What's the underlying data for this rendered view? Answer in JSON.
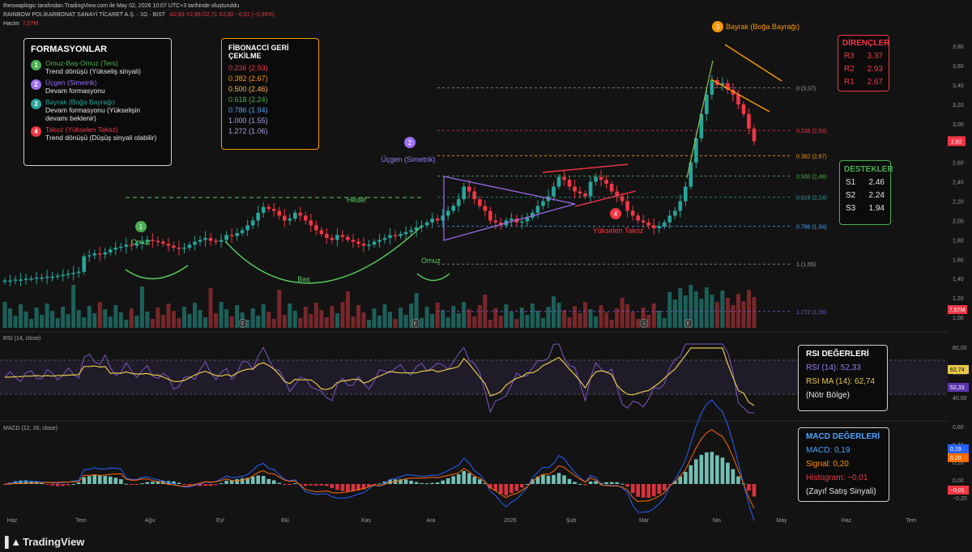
{
  "header": {
    "line1": "theswaplogic tarafından TradingView.com ile May 02, 2026 10:07 UTC+3 tarihinde oluşturuldu",
    "symbol": "RAINBOW POLİKARBONAT SANAYİ TİCARET A.Ş. · 1G · BIST",
    "ohlc": "A2,83  Y2,85  D2,71  K2,82  −0,01 (−0,35%)",
    "volume_label": "Hacim",
    "volume_value": "7,57M"
  },
  "formations": {
    "title": "FORMASYONLAR",
    "items": [
      {
        "num": "1",
        "title": "Omuz-Baş-Omuz (Ters)",
        "desc": "Trend dönüşü (Yükseliş sinyali)",
        "color": "#4caf50"
      },
      {
        "num": "2",
        "title": "Üçgen (Simetrik)",
        "desc": "Devam formasyonu",
        "color": "#9c6ff0"
      },
      {
        "num": "3",
        "title": "Bayrak (Boğa Bayrağı)",
        "desc": "Devam formasyonu (Yükselişin devamı beklenir)",
        "color": "#26a69a"
      },
      {
        "num": "4",
        "title": "Takoz (Yükselen Takoz)",
        "desc": "Trend dönüşü (Düşüş sinyali olabilir)",
        "color": "#f23645"
      }
    ]
  },
  "fibonacci_box": {
    "title": "FİBONACCİ GERİ ÇEKİLME",
    "rows": [
      {
        "text": "0.236 (2.93)",
        "color": "#f23645"
      },
      {
        "text": "0.382 (2.67)",
        "color": "#ff9800"
      },
      {
        "text": "0.500 (2.46)",
        "color": "#ffb74d"
      },
      {
        "text": "0.618 (2.24)",
        "color": "#4caf50"
      },
      {
        "text": "0.786 (1.94)",
        "color": "#42a5f5"
      },
      {
        "text": "1.000 (1.55)",
        "color": "#9fa8da"
      },
      {
        "text": "1.272 (1.06)",
        "color": "#b39ddb"
      }
    ]
  },
  "resistances": {
    "title": "DİRENÇLER",
    "rows": [
      {
        "label": "R3",
        "value": "3.37"
      },
      {
        "label": "R2",
        "value": "2.93"
      },
      {
        "label": "R1",
        "value": "2.67"
      }
    ]
  },
  "supports": {
    "title": "DESTEKLER",
    "rows": [
      {
        "label": "S1",
        "value": "2.46"
      },
      {
        "label": "S2",
        "value": "2.24"
      },
      {
        "label": "S3",
        "value": "1.94"
      }
    ]
  },
  "rsi_box": {
    "title": "RSI DEĞERLERİ",
    "rsi": "RSI (14): 52,33",
    "ma": "RSI MA (14): 62,74",
    "zone": "(Nötr Bölge)"
  },
  "macd_box": {
    "title": "MACD DEĞERLERİ",
    "macd": "MACD: 0,19",
    "signal": "Signal: 0,20",
    "hist": "Histogram: −0,01",
    "note": "(Zayıf Satış Sinyali)"
  },
  "branding": "TradingView",
  "chart_data": {
    "type": "candlestick",
    "price_axis": {
      "ticks": [
        "3,80",
        "3,60",
        "3,40",
        "3,20",
        "3,00",
        "2,80",
        "2,60",
        "2,40",
        "2,20",
        "2,00",
        "1,80",
        "1,60",
        "1,40",
        "1,20",
        "1,00"
      ],
      "min": 1.0,
      "max": 3.8
    },
    "last_price_label": "2,82",
    "volume_label": "7,57M",
    "time_axis": [
      "Haz",
      "Tem",
      "Ağu",
      "Eyl",
      "Eki",
      "Kas",
      "Ara",
      "2026",
      "Şub",
      "Mar",
      "Nis",
      "May",
      "Haz",
      "Tem"
    ],
    "fib_levels": [
      {
        "label": "0 (3,37)",
        "value": 3.37,
        "color": "#9e9e9e"
      },
      {
        "label": "0.236 (2,93)",
        "value": 2.93,
        "color": "#f23645"
      },
      {
        "label": "0.382 (2,67)",
        "value": 2.67,
        "color": "#ff9800"
      },
      {
        "label": "0.500 (2,46)",
        "value": 2.46,
        "color": "#4caf50"
      },
      {
        "label": "0.618 (2,24)",
        "value": 2.24,
        "color": "#26a69a"
      },
      {
        "label": "0.786 (1,94)",
        "value": 1.94,
        "color": "#42a5f5"
      },
      {
        "label": "1 (1,55)",
        "value": 1.55,
        "color": "#9e9e9e"
      },
      {
        "label": "1.272 (1,06)",
        "value": 1.06,
        "color": "#7e57c2"
      }
    ],
    "annotations": {
      "left_shoulder": "Omuz",
      "head": "Baş",
      "right_shoulder": "Omuz",
      "target": "Hedef",
      "triangle": "Üçgen (Simetrik)",
      "flag": "Bayrak (Boğa Bayrağı)",
      "wedge": "Yükselen Takoz",
      "earnings_marker": "E",
      "dividend_marker": "S"
    },
    "close": [
      1.38,
      1.38,
      1.39,
      1.39,
      1.4,
      1.4,
      1.41,
      1.41,
      1.42,
      1.42,
      1.43,
      1.44,
      1.45,
      1.46,
      1.47,
      1.63,
      1.64,
      1.66,
      1.65,
      1.67,
      1.7,
      1.72,
      1.73,
      1.75,
      1.74,
      1.76,
      1.78,
      1.8,
      1.79,
      1.78,
      1.76,
      1.74,
      1.72,
      1.71,
      1.72,
      1.75,
      1.78,
      1.8,
      1.82,
      1.79,
      1.78,
      1.8,
      1.85,
      1.84,
      1.87,
      1.9,
      1.95,
      2.0,
      2.08,
      2.14,
      2.12,
      2.1,
      2.05,
      2.0,
      2.02,
      2.08,
      2.05,
      2.0,
      1.95,
      1.9,
      1.86,
      1.82,
      1.8,
      1.85,
      1.83,
      1.8,
      1.78,
      1.76,
      1.74,
      1.75,
      1.78,
      1.8,
      1.82,
      1.85,
      1.84,
      1.86,
      1.88,
      1.9,
      1.93,
      1.95,
      1.98,
      2.02,
      2.0,
      2.05,
      2.1,
      2.15,
      2.22,
      2.35,
      2.3,
      2.22,
      2.15,
      2.1,
      2.0,
      1.98,
      1.95,
      2.0,
      2.02,
      1.98,
      1.99,
      2.03,
      2.08,
      2.15,
      2.2,
      2.25,
      2.35,
      2.45,
      2.42,
      2.35,
      2.3,
      2.28,
      2.25,
      2.4,
      2.45,
      2.42,
      2.38,
      2.3,
      2.25,
      2.2,
      2.1,
      2.05,
      2.0,
      1.98,
      1.95,
      1.92,
      1.94,
      1.98,
      2.05,
      2.1,
      2.2,
      2.35,
      2.6,
      2.85,
      3.1,
      3.3,
      3.45,
      3.4,
      3.42,
      3.35,
      3.3,
      3.2,
      3.1,
      2.95,
      2.82
    ],
    "rsi": {
      "ticks": [
        "80,00",
        "60,00",
        "40,00"
      ],
      "rsi_value_label": "52,33",
      "ma_value_label": "62,74",
      "rsi_color": "#7e57c2",
      "ma_color": "#e6c84a"
    },
    "macd": {
      "ticks": [
        "0,60",
        "0,40",
        "0,20",
        "0,00",
        "−0,20"
      ],
      "macd_label": "0,19",
      "signal_label": "0,20",
      "hist_label": "−0,01",
      "macd_color": "#2962ff",
      "signal_color": "#ff6d00"
    }
  }
}
